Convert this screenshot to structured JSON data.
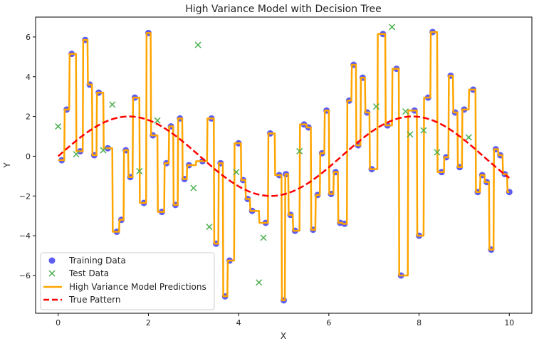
{
  "chart_data": {
    "type": "line",
    "title": "High Variance Model with Decision Tree",
    "xlabel": "X",
    "ylabel": "Y",
    "xlim": [
      -0.5,
      10.5
    ],
    "ylim": [
      -7.9,
      7.0
    ],
    "xticks": [
      0,
      2,
      4,
      6,
      8,
      10
    ],
    "xtick_labels": [
      "0",
      "2",
      "4",
      "6",
      "8",
      "10"
    ],
    "yticks": [
      -6,
      -4,
      -2,
      0,
      2,
      4,
      6
    ],
    "ytick_labels": [
      "−6",
      "−4",
      "−2",
      "0",
      "2",
      "4",
      "6"
    ],
    "grid": false,
    "legend": {
      "placement": "lower-left",
      "entries": [
        "Training Data",
        "Test Data",
        "High Variance Model Predictions",
        "True Pattern"
      ]
    },
    "colors": {
      "training": "#4040f0",
      "test": "#4caf50",
      "predictions": "#ffa500",
      "true_pattern": "#ff0000"
    },
    "series": [
      {
        "name": "Training Data",
        "kind": "scatter",
        "points": [
          [
            0.08,
            -0.2
          ],
          [
            0.19,
            2.35
          ],
          [
            0.3,
            5.15
          ],
          [
            0.49,
            0.25
          ],
          [
            0.6,
            5.85
          ],
          [
            0.7,
            3.6
          ],
          [
            0.8,
            0.05
          ],
          [
            0.9,
            3.2
          ],
          [
            1.1,
            0.4
          ],
          [
            1.3,
            -3.8
          ],
          [
            1.4,
            -3.2
          ],
          [
            1.5,
            0.3
          ],
          [
            1.6,
            -1.05
          ],
          [
            1.7,
            2.95
          ],
          [
            1.9,
            -2.35
          ],
          [
            2.0,
            6.2
          ],
          [
            2.1,
            1.05
          ],
          [
            2.3,
            -2.8
          ],
          [
            2.4,
            -0.35
          ],
          [
            2.5,
            1.5
          ],
          [
            2.6,
            -2.45
          ],
          [
            2.7,
            1.9
          ],
          [
            2.8,
            -1.15
          ],
          [
            2.9,
            -0.45
          ],
          [
            3.2,
            -0.25
          ],
          [
            3.4,
            1.9
          ],
          [
            3.5,
            -4.4
          ],
          [
            3.6,
            -0.35
          ],
          [
            3.7,
            -7.05
          ],
          [
            3.8,
            -5.25
          ],
          [
            4.0,
            0.65
          ],
          [
            4.1,
            -1.2
          ],
          [
            4.2,
            -2.15
          ],
          [
            4.3,
            -2.75
          ],
          [
            4.6,
            -3.35
          ],
          [
            4.7,
            1.15
          ],
          [
            4.9,
            -0.95
          ],
          [
            5.0,
            -7.25
          ],
          [
            5.05,
            -0.9
          ],
          [
            5.15,
            -2.95
          ],
          [
            5.25,
            -3.75
          ],
          [
            5.45,
            1.6
          ],
          [
            5.55,
            1.45
          ],
          [
            5.65,
            -3.7
          ],
          [
            5.75,
            -1.95
          ],
          [
            5.85,
            0.15
          ],
          [
            5.95,
            2.3
          ],
          [
            6.05,
            -1.9
          ],
          [
            6.15,
            -0.8
          ],
          [
            6.25,
            -3.35
          ],
          [
            6.35,
            -3.4
          ],
          [
            6.45,
            2.8
          ],
          [
            6.55,
            4.6
          ],
          [
            6.65,
            0.55
          ],
          [
            6.75,
            3.95
          ],
          [
            6.85,
            2.2
          ],
          [
            6.95,
            -0.65
          ],
          [
            7.2,
            6.15
          ],
          [
            7.3,
            1.55
          ],
          [
            7.5,
            4.4
          ],
          [
            7.6,
            -6.0
          ],
          [
            7.9,
            2.3
          ],
          [
            8.0,
            -4.0
          ],
          [
            8.2,
            2.95
          ],
          [
            8.3,
            6.25
          ],
          [
            8.5,
            -0.8
          ],
          [
            8.6,
            -0.05
          ],
          [
            8.7,
            4.05
          ],
          [
            8.8,
            2.2
          ],
          [
            8.9,
            -0.55
          ],
          [
            9.0,
            2.35
          ],
          [
            9.2,
            3.35
          ],
          [
            9.3,
            -1.8
          ],
          [
            9.4,
            -0.95
          ],
          [
            9.5,
            -1.3
          ],
          [
            9.6,
            -4.7
          ],
          [
            9.7,
            0.35
          ],
          [
            9.8,
            0.05
          ],
          [
            9.9,
            -0.9
          ],
          [
            10.0,
            -1.8
          ]
        ]
      },
      {
        "name": "Test Data",
        "kind": "scatter",
        "points": [
          [
            0.0,
            1.5
          ],
          [
            0.4,
            0.1
          ],
          [
            1.0,
            0.3
          ],
          [
            1.2,
            2.6
          ],
          [
            1.8,
            -0.75
          ],
          [
            2.2,
            1.8
          ],
          [
            3.0,
            -1.6
          ],
          [
            3.1,
            5.6
          ],
          [
            3.35,
            -3.55
          ],
          [
            3.95,
            -0.8
          ],
          [
            4.45,
            -6.35
          ],
          [
            4.55,
            -4.1
          ],
          [
            5.35,
            0.25
          ],
          [
            7.05,
            2.5
          ],
          [
            7.4,
            6.5
          ],
          [
            7.7,
            2.25
          ],
          [
            7.8,
            1.1
          ],
          [
            8.1,
            1.3
          ],
          [
            8.4,
            0.2
          ],
          [
            9.1,
            0.95
          ]
        ]
      },
      {
        "name": "High Variance Model Predictions",
        "kind": "step-line",
        "note": "decision tree predictions step through each training point"
      },
      {
        "name": "True Pattern",
        "kind": "line",
        "function": "2*sin(x)",
        "x_range": [
          0,
          10
        ]
      }
    ]
  }
}
